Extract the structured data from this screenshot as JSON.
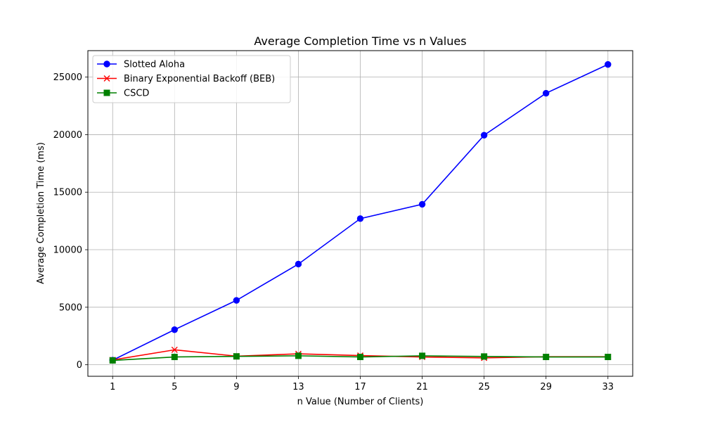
{
  "chart_data": {
    "type": "line",
    "title": "Average Completion Time vs n Values",
    "xlabel": "n Value (Number of Clients)",
    "ylabel": "Average Completion Time (ms)",
    "x": [
      1,
      5,
      9,
      13,
      17,
      21,
      25,
      29,
      33
    ],
    "xlim": [
      -0.6,
      34.6
    ],
    "ylim": [
      -1000,
      27300
    ],
    "yticks": [
      0,
      5000,
      10000,
      15000,
      20000,
      25000
    ],
    "grid": true,
    "legend_position": "top-left",
    "series": [
      {
        "name": "Slotted Aloha",
        "color": "#0000ff",
        "marker": "circle",
        "values": [
          400,
          3050,
          5600,
          8750,
          12700,
          13950,
          19950,
          23600,
          26100
        ]
      },
      {
        "name": "Binary Exponential Backoff (BEB)",
        "color": "#ff0000",
        "marker": "x",
        "values": [
          420,
          1300,
          750,
          950,
          800,
          680,
          600,
          700,
          700
        ]
      },
      {
        "name": "CSCD",
        "color": "#008000",
        "marker": "square",
        "values": [
          380,
          680,
          730,
          780,
          680,
          780,
          720,
          680,
          680
        ]
      }
    ]
  }
}
